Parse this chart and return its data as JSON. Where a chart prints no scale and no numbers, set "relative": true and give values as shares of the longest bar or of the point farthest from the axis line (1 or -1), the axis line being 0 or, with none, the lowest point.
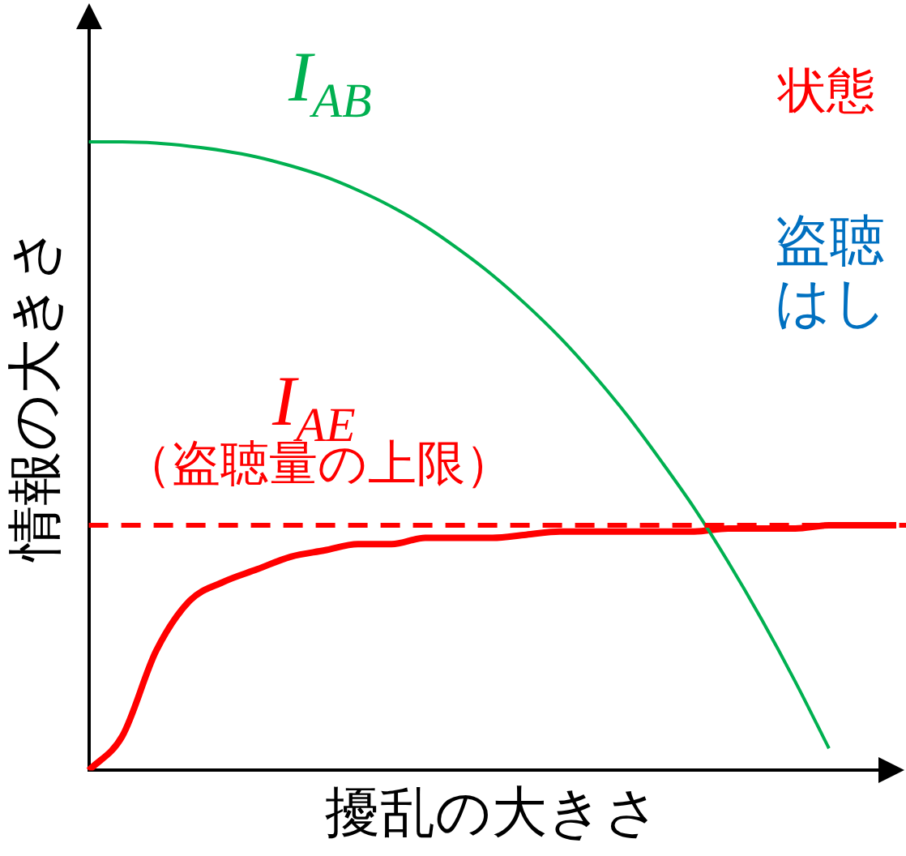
{
  "chart_data": {
    "type": "line",
    "relative": true,
    "xlabel": "擾乱の大きさ",
    "ylabel": "情報の大きさ",
    "categories": [
      null,
      null,
      null,
      null,
      null,
      null,
      null,
      null,
      null,
      null,
      null,
      null,
      null,
      null,
      null,
      null,
      null,
      null,
      null,
      null,
      null,
      null,
      null,
      null,
      null
    ],
    "series": [
      {
        "name": "I$_{AB}$",
        "color": "#00b050",
        "values": [
          1,
          1,
          0.998,
          0.993,
          0.986,
          0.976,
          0.962,
          0.945,
          0.923,
          0.897,
          0.866,
          0.829,
          0.788,
          0.741,
          0.689,
          0.63,
          0.565,
          0.493,
          0.417,
          0.332,
          0.24,
          0.141,
          0.035,
          null,
          null
        ]
      },
      {
        "name": "I$_{AE}$",
        "color": "#ff0000",
        "values": [
          0,
          0.055,
          0.19,
          0.27,
          0.3,
          0.32,
          0.34,
          0.35,
          0.36,
          0.36,
          0.37,
          0.37,
          0.37,
          0.375,
          0.38,
          0.38,
          0.38,
          0.38,
          0.38,
          0.385,
          0.385,
          0.385,
          0.39,
          0.39,
          0.39
        ]
      }
    ],
    "ref_lines": [
      {
        "axis": "y",
        "value": 0.39,
        "color": "#ff0000",
        "line_style": "dashed"
      }
    ],
    "annotations": [
      "（盗聴量の上限）",
      "状態",
      "盗聴",
      "はし"
    ],
    "legend": false,
    "grid": false,
    "marker": "none",
    "line_style": "solid"
  }
}
